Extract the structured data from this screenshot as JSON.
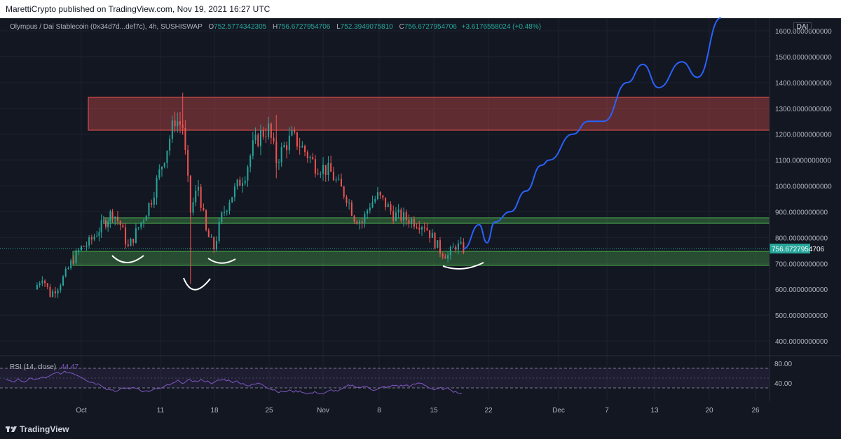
{
  "header": {
    "published_text": "MarettiCrypto published on TradingView.com, Nov 19, 2021 16:27 UTC"
  },
  "legend": {
    "symbol": "Olympus / Dai Stablecoin (0x34d7d...def7c), 4h, SUSHISWAP",
    "open_label": "O",
    "open": "752.5774342305",
    "high_label": "H",
    "high": "756.6727954706",
    "low_label": "L",
    "low": "752.3949075810",
    "close_label": "C",
    "close": "756.6727954706",
    "change": "+3.6176558024 (+0.48%)"
  },
  "currency_badge": "DAI",
  "price_label": "756.6727954706",
  "rsi": {
    "label": "RSI (14, close)",
    "value": "44.47",
    "ticks": [
      "80.00",
      "40.00"
    ]
  },
  "branding": {
    "logo_text": "TradingView"
  },
  "colors": {
    "background": "#131722",
    "up": "#26a69a",
    "down": "#ef5350",
    "resistance_zone": "#ef5350",
    "support_zone": "#4caf50",
    "projection": "#2962ff",
    "rsi": "#7e57c2"
  },
  "chart_data": {
    "type": "candlestick",
    "y_axis": {
      "ticks": [
        "1600.0000000000",
        "1500.0000000000",
        "1400.0000000000",
        "1300.0000000000",
        "1200.0000000000",
        "1100.0000000000",
        "1000.0000000000",
        "900.0000000000",
        "800.0000000000",
        "700.0000000000",
        "600.0000000000",
        "500.0000000000",
        "400.0000000000"
      ],
      "ylim": [
        325,
        1640
      ]
    },
    "x_axis": {
      "ticks": [
        "Oct",
        "11",
        "18",
        "25",
        "Nov",
        "8",
        "15",
        "22",
        "Dec",
        "7",
        "13",
        "20",
        "26"
      ]
    },
    "candles_close_path": [
      {
        "x": "Sep 25",
        "y": 600
      },
      {
        "x": "Sep 26",
        "y": 650
      },
      {
        "x": "Sep 27",
        "y": 580
      },
      {
        "x": "Sep 28",
        "y": 610
      },
      {
        "x": "Sep 29",
        "y": 660
      },
      {
        "x": "Sep 30",
        "y": 720
      },
      {
        "x": "Oct 1",
        "y": 760
      },
      {
        "x": "Oct 2",
        "y": 780
      },
      {
        "x": "Oct 3",
        "y": 820
      },
      {
        "x": "Oct 5",
        "y": 900
      },
      {
        "x": "Oct 6",
        "y": 850
      },
      {
        "x": "Oct 7",
        "y": 760
      },
      {
        "x": "Oct 8",
        "y": 820
      },
      {
        "x": "Oct 9",
        "y": 880
      },
      {
        "x": "Oct 10",
        "y": 950
      },
      {
        "x": "Oct 11",
        "y": 1050
      },
      {
        "x": "Oct 12",
        "y": 1150
      },
      {
        "x": "Oct 13",
        "y": 1260
      },
      {
        "x": "Oct 14",
        "y": 1230
      },
      {
        "x": "Oct 15",
        "y": 900
      },
      {
        "x": "Oct 16",
        "y": 1000
      },
      {
        "x": "Oct 17",
        "y": 820
      },
      {
        "x": "Oct 18",
        "y": 760
      },
      {
        "x": "Oct 19",
        "y": 880
      },
      {
        "x": "Oct 20",
        "y": 950
      },
      {
        "x": "Oct 21",
        "y": 1000
      },
      {
        "x": "Oct 22",
        "y": 1050
      },
      {
        "x": "Oct 23",
        "y": 1150
      },
      {
        "x": "Oct 24",
        "y": 1200
      },
      {
        "x": "Oct 25",
        "y": 1220
      },
      {
        "x": "Oct 26",
        "y": 1100
      },
      {
        "x": "Oct 27",
        "y": 1150
      },
      {
        "x": "Oct 28",
        "y": 1190
      },
      {
        "x": "Oct 29",
        "y": 1160
      },
      {
        "x": "Oct 30",
        "y": 1120
      },
      {
        "x": "Oct 31",
        "y": 1080
      },
      {
        "x": "Nov 1",
        "y": 1070
      },
      {
        "x": "Nov 2",
        "y": 1050
      },
      {
        "x": "Nov 3",
        "y": 1000
      },
      {
        "x": "Nov 4",
        "y": 960
      },
      {
        "x": "Nov 5",
        "y": 880
      },
      {
        "x": "Nov 6",
        "y": 860
      },
      {
        "x": "Nov 7",
        "y": 930
      },
      {
        "x": "Nov 8",
        "y": 960
      },
      {
        "x": "Nov 9",
        "y": 930
      },
      {
        "x": "Nov 10",
        "y": 890
      },
      {
        "x": "Nov 11",
        "y": 880
      },
      {
        "x": "Nov 12",
        "y": 870
      },
      {
        "x": "Nov 13",
        "y": 860
      },
      {
        "x": "Nov 14",
        "y": 850
      },
      {
        "x": "Nov 15",
        "y": 800
      },
      {
        "x": "Nov 16",
        "y": 750
      },
      {
        "x": "Nov 17",
        "y": 730
      },
      {
        "x": "Nov 18",
        "y": 770
      },
      {
        "x": "Nov 19",
        "y": 756.67
      }
    ],
    "zones": [
      {
        "kind": "resistance",
        "y_low": 1210,
        "y_high": 1340
      },
      {
        "kind": "support",
        "y_low": 855,
        "y_high": 875
      },
      {
        "kind": "support",
        "y_low": 690,
        "y_high": 748
      }
    ],
    "projection_path": [
      {
        "x": "Nov 19",
        "y": 757
      },
      {
        "x": "Nov 21",
        "y": 850
      },
      {
        "x": "Nov 22",
        "y": 780
      },
      {
        "x": "Nov 23",
        "y": 860
      },
      {
        "x": "Nov 25",
        "y": 900
      },
      {
        "x": "Nov 27",
        "y": 980
      },
      {
        "x": "Nov 29",
        "y": 1080
      },
      {
        "x": "Nov 30",
        "y": 1100
      },
      {
        "x": "Dec 3",
        "y": 1200
      },
      {
        "x": "Dec 5",
        "y": 1250
      },
      {
        "x": "Dec 7",
        "y": 1250
      },
      {
        "x": "Dec 10",
        "y": 1400
      },
      {
        "x": "Dec 12",
        "y": 1470
      },
      {
        "x": "Dec 14",
        "y": 1380
      },
      {
        "x": "Dec 17",
        "y": 1480
      },
      {
        "x": "Dec 19",
        "y": 1420
      },
      {
        "x": "Dec 22",
        "y": 1650
      }
    ]
  }
}
